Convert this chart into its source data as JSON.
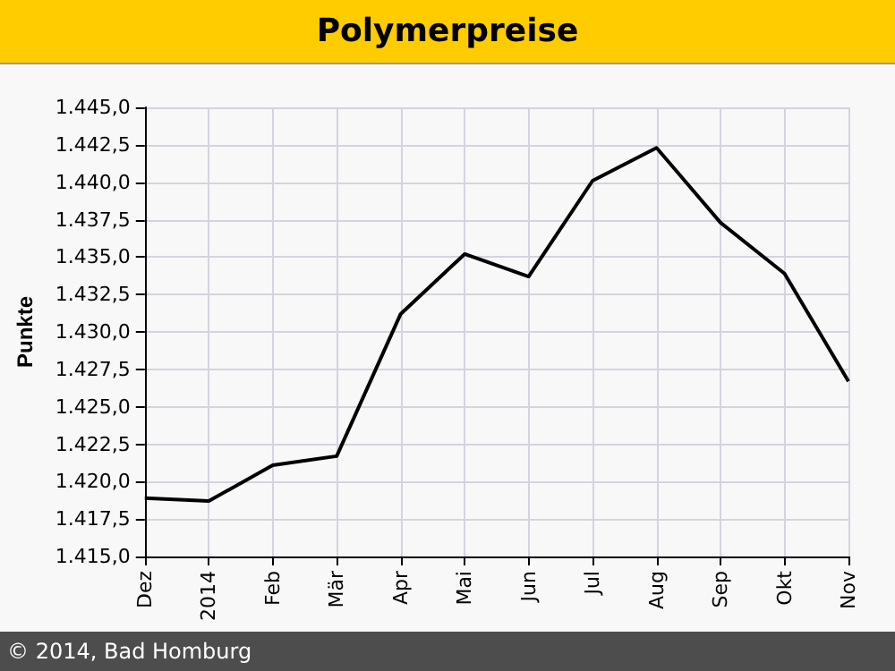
{
  "chart_data": {
    "type": "line",
    "title": "Polymerpreise",
    "ylabel": "Punkte",
    "annotations": [
      "© 2014, Bad Homburg"
    ],
    "categories": [
      "Dez",
      "2014",
      "Feb",
      "Mär",
      "Apr",
      "Mai",
      "Jun",
      "Jul",
      "Aug",
      "Sep",
      "Okt",
      "Nov"
    ],
    "series": [
      {
        "color": "#000000",
        "values": [
          1418.9,
          1418.7,
          1421.1,
          1421.7,
          1431.2,
          1435.2,
          1433.7,
          1440.1,
          1442.3,
          1437.3,
          1433.9,
          1426.7
        ]
      }
    ],
    "ylim": [
      1415,
      1445
    ],
    "yticks": [
      {
        "value": 1415,
        "label": "1.415,0"
      },
      {
        "value": 1417.5,
        "label": "1.417,5"
      },
      {
        "value": 1420,
        "label": "1.420,0"
      },
      {
        "value": 1422.5,
        "label": "1.422,5"
      },
      {
        "value": 1425,
        "label": "1.425,0"
      },
      {
        "value": 1427.5,
        "label": "1.427,5"
      },
      {
        "value": 1430,
        "label": "1.430,0"
      },
      {
        "value": 1432.5,
        "label": "1.432,5"
      },
      {
        "value": 1435,
        "label": "1.435,0"
      },
      {
        "value": 1437.5,
        "label": "1.437,5"
      },
      {
        "value": 1440,
        "label": "1.440,0"
      },
      {
        "value": 1442.5,
        "label": "1.442,5"
      },
      {
        "value": 1445,
        "label": "1.445,0"
      }
    ],
    "grid": true,
    "marker": "none",
    "line_style": "solid",
    "legend": false
  }
}
